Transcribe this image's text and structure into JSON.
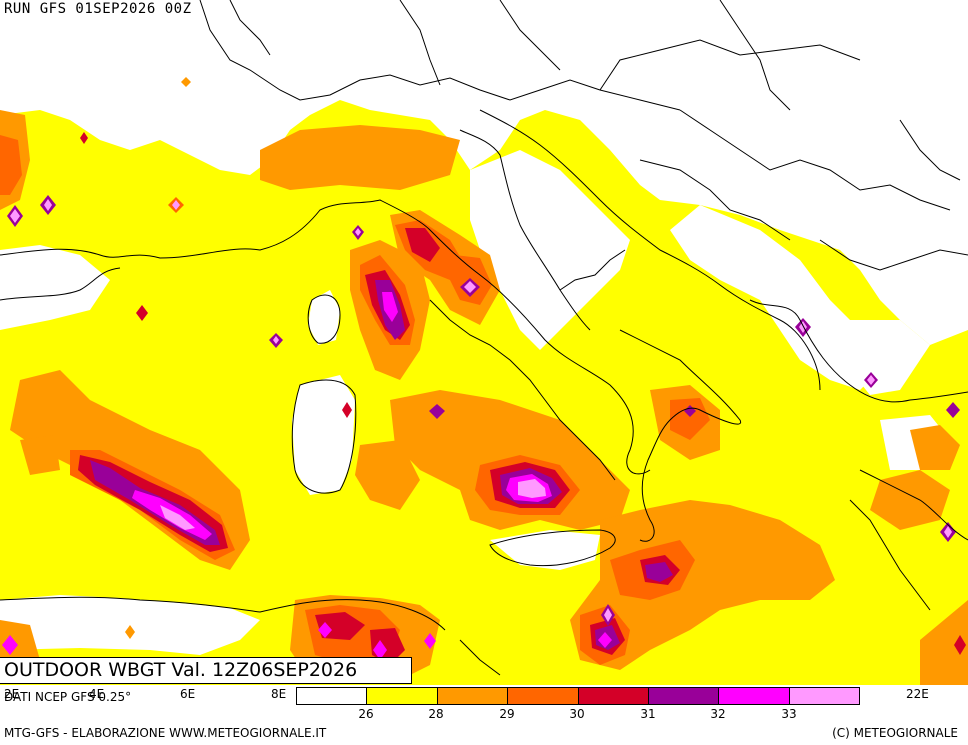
{
  "header": {
    "run_title": "RUN GFS 01SEP2026 00Z"
  },
  "product": {
    "label": "OUTDOOR WBGT Val. 12Z06SEP2026"
  },
  "data_source": "DATI NCEP GFS 0.25°",
  "longitude_labels": [
    "2E",
    "4E",
    "6E",
    "8E",
    "22E"
  ],
  "legend": {
    "colors": [
      "#ffffff",
      "#ffff00",
      "#ff9900",
      "#ff6600",
      "#d40028",
      "#990099",
      "#ff00ff",
      "#ff99ff"
    ],
    "thresholds": [
      "26",
      "28",
      "29",
      "30",
      "31",
      "32",
      "33"
    ]
  },
  "footer": {
    "left": "MTG-GFS - ELABORAZIONE WWW.METEOGIORNALE.IT",
    "right": "(C) METEOGIORNALE"
  }
}
